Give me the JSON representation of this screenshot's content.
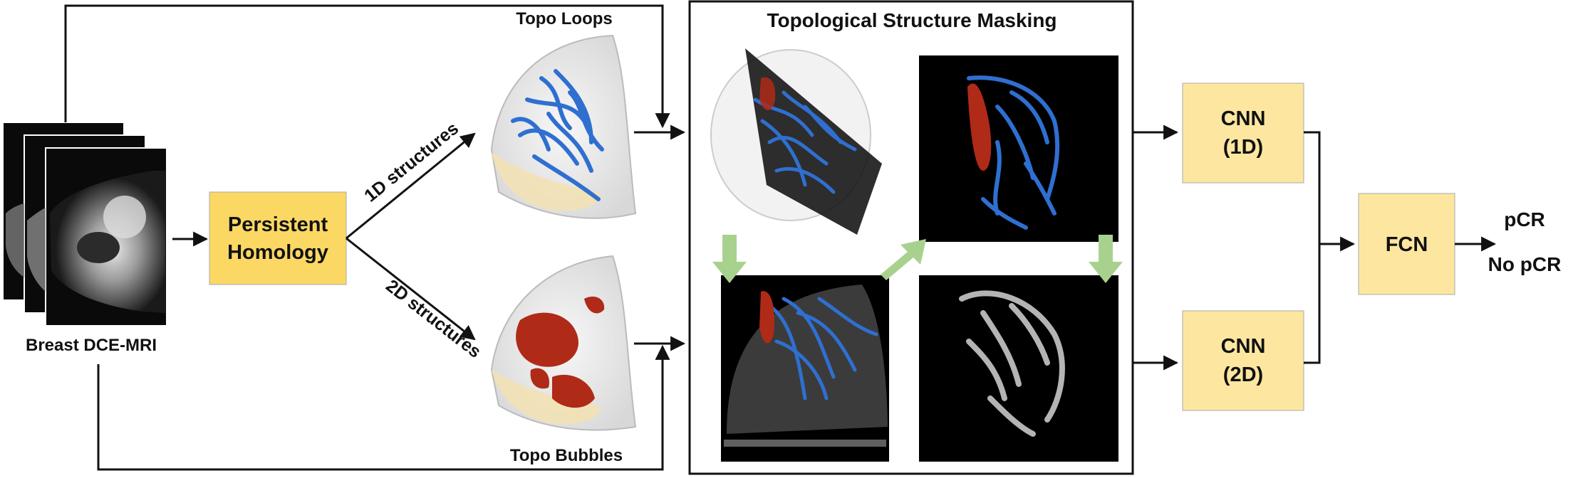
{
  "inputs": {
    "mri_label": "Breast DCE-MRI"
  },
  "nodes": {
    "persistent_homology": {
      "line1": "Persistent",
      "line2": "Homology",
      "fill": "#fbd863"
    },
    "cnn_1d": {
      "line1": "CNN",
      "line2": "(1D)",
      "fill": "#fde7a0"
    },
    "cnn_2d": {
      "line1": "CNN",
      "line2": "(2D)",
      "fill": "#fde7a0"
    },
    "fcn": {
      "label": "FCN",
      "fill": "#fde7a0"
    }
  },
  "edge_labels": {
    "structures_1d": "1D structures",
    "structures_2d": "2D structures"
  },
  "topology": {
    "loops_label": "Topo Loops",
    "bubbles_label": "Topo Bubbles",
    "loops_color": "#2f6fd0",
    "bubbles_color": "#b02a18"
  },
  "masking": {
    "title": "Topological Structure Masking",
    "arrow_color": "#a9d18e"
  },
  "outputs": {
    "pcr": "pCR",
    "no_pcr": "No pCR"
  }
}
